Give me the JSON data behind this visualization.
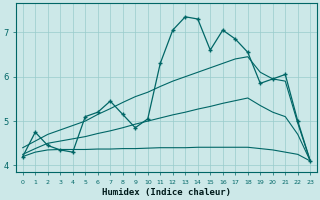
{
  "xlabel": "Humidex (Indice chaleur)",
  "bg_color": "#cce8e8",
  "line_color": "#006666",
  "grid_color": "#99cccc",
  "x": [
    0,
    1,
    2,
    3,
    4,
    5,
    6,
    7,
    8,
    9,
    10,
    11,
    12,
    13,
    14,
    15,
    16,
    17,
    18,
    19,
    20,
    21,
    22,
    23
  ],
  "y_main": [
    4.2,
    4.75,
    4.45,
    4.35,
    4.3,
    5.1,
    5.2,
    5.45,
    5.15,
    4.85,
    5.05,
    6.3,
    7.05,
    7.35,
    7.3,
    6.6,
    7.05,
    6.85,
    6.55,
    5.85,
    5.95,
    6.05,
    5.0,
    4.1
  ],
  "y_upper": [
    4.4,
    4.55,
    4.7,
    4.8,
    4.9,
    5.0,
    5.15,
    5.28,
    5.42,
    5.55,
    5.65,
    5.78,
    5.9,
    6.0,
    6.1,
    6.2,
    6.3,
    6.4,
    6.45,
    6.1,
    5.95,
    5.9,
    4.95,
    4.1
  ],
  "y_mid": [
    4.25,
    4.38,
    4.5,
    4.55,
    4.6,
    4.65,
    4.72,
    4.78,
    4.85,
    4.93,
    5.0,
    5.07,
    5.14,
    5.2,
    5.27,
    5.33,
    5.4,
    5.46,
    5.52,
    5.35,
    5.2,
    5.1,
    4.7,
    4.1
  ],
  "y_lower": [
    4.2,
    4.3,
    4.35,
    4.36,
    4.36,
    4.36,
    4.37,
    4.37,
    4.38,
    4.38,
    4.39,
    4.4,
    4.4,
    4.4,
    4.41,
    4.41,
    4.41,
    4.41,
    4.41,
    4.38,
    4.35,
    4.3,
    4.25,
    4.1
  ],
  "ylim": [
    3.85,
    7.65
  ],
  "yticks": [
    4,
    5,
    6,
    7
  ]
}
